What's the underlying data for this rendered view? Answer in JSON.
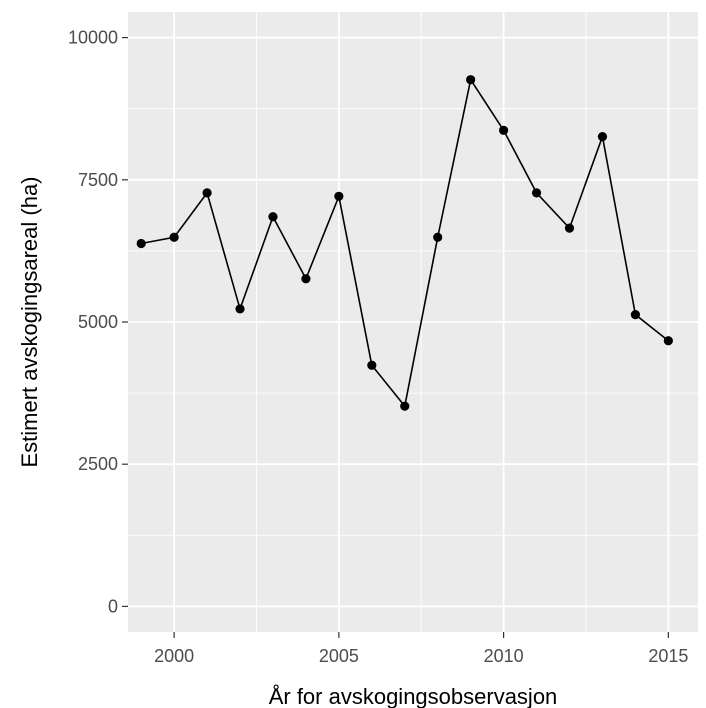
{
  "chart_data": {
    "type": "line",
    "title": "",
    "xlabel": "År for avskogingsobservasjon",
    "ylabel": "Estimert avskogingsareal (ha)",
    "x_ticks": [
      "2000",
      "2005",
      "2010",
      "2015"
    ],
    "y_ticks": [
      "0",
      "2500",
      "5000",
      "7500",
      "10000"
    ],
    "xlim": [
      1998.6,
      2015.9
    ],
    "ylim": [
      -450,
      10450
    ],
    "grid": true,
    "legend": "none",
    "colors": {
      "panel_bg": "#ebebeb",
      "grid": "#ffffff",
      "line": "#000000",
      "point": "#000000"
    },
    "series": [
      {
        "x": [
          1999,
          2000,
          2001,
          2002,
          2003,
          2004,
          2005,
          2006,
          2007,
          2008,
          2009,
          2010,
          2011,
          2012,
          2013,
          2014,
          2015
        ],
        "y": [
          6380,
          6490,
          7270,
          5230,
          6850,
          5760,
          7210,
          4240,
          3520,
          6490,
          9260,
          8370,
          7270,
          6650,
          8260,
          5130,
          4670
        ]
      }
    ]
  }
}
